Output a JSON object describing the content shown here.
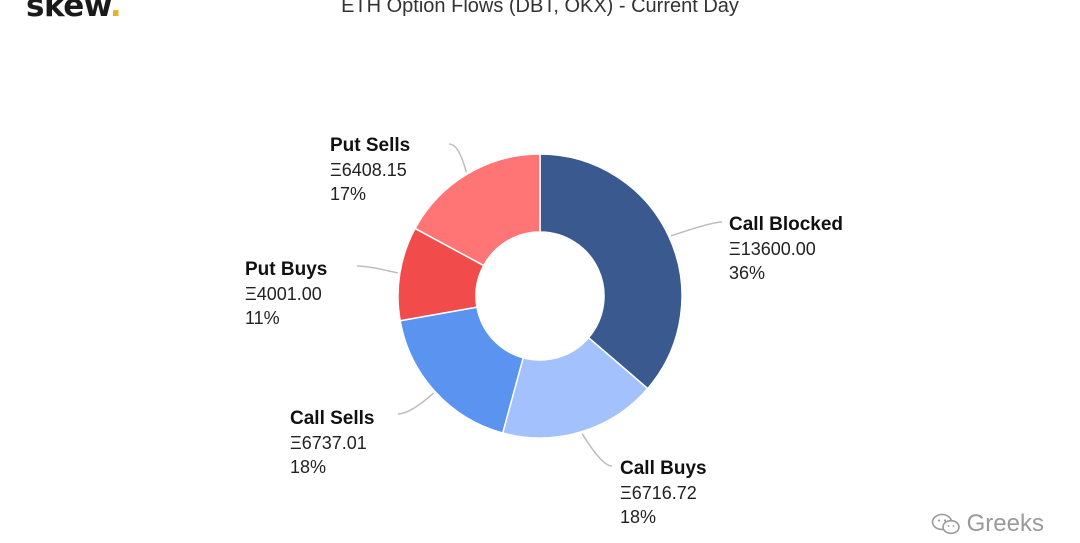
{
  "brand": {
    "logo_text": "skew",
    "logo_dot": "."
  },
  "watermark": {
    "text": "Greeks",
    "icon": "wechat-icon"
  },
  "chart_data": {
    "type": "pie",
    "donut": true,
    "title": "ETH Option Flows (DBT, OKX) - Current Day",
    "currency_symbol": "Ξ",
    "legend": "none",
    "slices": [
      {
        "name": "Call Blocked",
        "value": 13600.0,
        "value_label": "Ξ13600.00",
        "percent_label": "36%",
        "color": "#3a5a8f"
      },
      {
        "name": "Call Buys",
        "value": 6716.72,
        "value_label": "Ξ6716.72",
        "percent_label": "18%",
        "color": "#a3c1fc"
      },
      {
        "name": "Call Sells",
        "value": 6737.01,
        "value_label": "Ξ6737.01",
        "percent_label": "18%",
        "color": "#5b93f1"
      },
      {
        "name": "Put Buys",
        "value": 4001.0,
        "value_label": "Ξ4001.00",
        "percent_label": "11%",
        "color": "#f24b4b"
      },
      {
        "name": "Put Sells",
        "value": 6408.15,
        "value_label": "Ξ6408.15",
        "percent_label": "17%",
        "color": "#ff7474"
      }
    ]
  }
}
